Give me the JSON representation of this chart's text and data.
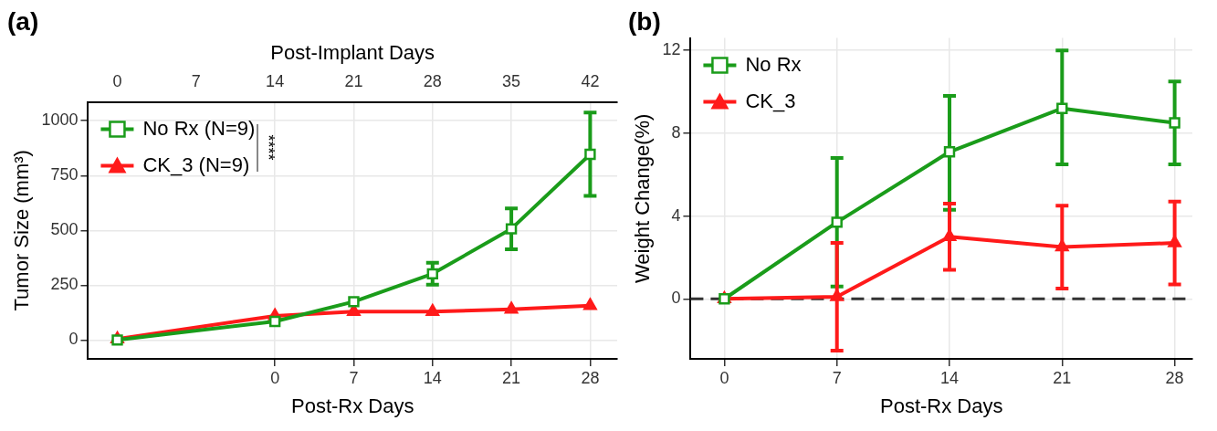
{
  "chart_data": [
    {
      "type": "line",
      "title": "(a)",
      "xlabel": "Post-Rx Days",
      "x2label": "Post-Implant Days",
      "ylabel": "Tumor Size (mm³)",
      "x": [
        -14,
        0,
        7,
        14,
        21,
        28
      ],
      "xlim": [
        -16.6,
        30.4
      ],
      "xticks": [
        0,
        7,
        14,
        21,
        28
      ],
      "x2lim": [
        -2.6,
        44.4
      ],
      "x2ticks": [
        0,
        7,
        14,
        21,
        28,
        35,
        42
      ],
      "ylim": [
        -86,
        1086
      ],
      "yticks": [
        0,
        250,
        500,
        750,
        1000
      ],
      "series": [
        {
          "name": "No Rx (N=9)",
          "color": "#1a9c1a",
          "marker": "square",
          "values": [
            0,
            85,
            175,
            302,
            507,
            847
          ],
          "errors": [
            null,
            null,
            null,
            50,
            93,
            190
          ]
        },
        {
          "name": "CK_3 (N=9)",
          "color": "#ff1a1a",
          "marker": "triangle",
          "values": [
            5,
            110,
            130,
            130,
            140,
            157
          ]
        }
      ],
      "annotations": [
        "****"
      ],
      "grid": true,
      "legend": "top left"
    },
    {
      "type": "line",
      "title": "(b)",
      "xlabel": "Post-Rx Days",
      "ylabel": "Weight Change(%)",
      "x": [
        0,
        7,
        14,
        21,
        28
      ],
      "xlim": [
        -2.1,
        29.1
      ],
      "xticks": [
        0,
        7,
        14,
        21,
        28
      ],
      "ylim": [
        -2.9,
        12.6
      ],
      "yticks": [
        0,
        4,
        8,
        12
      ],
      "series": [
        {
          "name": "No Rx",
          "color": "#1a9c1a",
          "marker": "square",
          "values": [
            0,
            3.7,
            7.1,
            9.2,
            8.5
          ],
          "errors": [
            null,
            [
              0.6,
              6.8
            ],
            [
              4.3,
              9.8
            ],
            [
              6.5,
              12.0
            ],
            [
              6.5,
              10.5
            ]
          ]
        },
        {
          "name": "CK_3",
          "color": "#ff1a1a",
          "marker": "triangle",
          "values": [
            0,
            0.1,
            3.0,
            2.5,
            2.7
          ],
          "errors": [
            null,
            [
              -2.5,
              2.7
            ],
            [
              1.4,
              4.6
            ],
            [
              0.5,
              4.5
            ],
            [
              0.7,
              4.7
            ]
          ]
        }
      ],
      "ref_lines": [
        {
          "axis": "y",
          "value": 0,
          "color": "#333333",
          "line_style": "dashed"
        }
      ],
      "grid": true,
      "legend": "top left"
    }
  ]
}
